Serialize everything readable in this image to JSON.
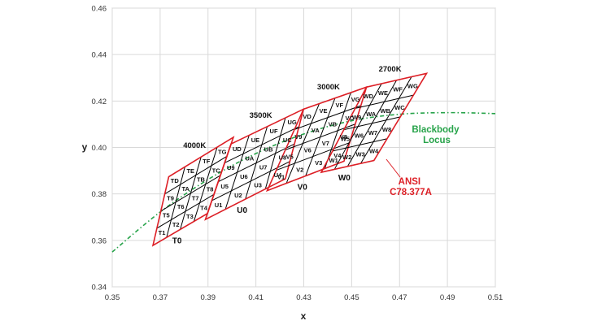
{
  "chart_data": {
    "type": "line",
    "xlabel": "x",
    "ylabel": "y",
    "xlim": [
      0.35,
      0.51
    ],
    "ylim": [
      0.34,
      0.46
    ],
    "x_ticks": [
      "0.35",
      "0.37",
      "0.39",
      "0.41",
      "0.43",
      "0.45",
      "0.47",
      "0.49",
      "0.51"
    ],
    "y_ticks": [
      "0.34",
      "0.36",
      "0.38",
      "0.40",
      "0.42",
      "0.44",
      "0.46"
    ],
    "grid": true,
    "colors": {
      "quadrangle": "#dd1f26",
      "grid_lines": "#000000",
      "locus": "#27a34a",
      "ansi": "#dd1f26"
    },
    "blackbody_locus": {
      "name": "Blackbody Locus",
      "x": [
        0.35,
        0.37,
        0.39,
        0.41,
        0.43,
        0.45,
        0.47,
        0.49,
        0.51
      ],
      "y": [
        0.355,
        0.3722,
        0.3862,
        0.3974,
        0.4058,
        0.4115,
        0.4143,
        0.415,
        0.4146
      ]
    },
    "regions": [
      {
        "group": "T",
        "cct": "4000K",
        "base": "T0",
        "outline": [
          [
            0.367,
            0.3578
          ],
          [
            0.3898,
            0.3716
          ],
          [
            0.4006,
            0.4044
          ],
          [
            0.3736,
            0.3874
          ]
        ],
        "cells": [
          [
            "T1",
            "T2",
            "T3",
            "T4"
          ],
          [
            "T5",
            "T6",
            "T7",
            "T8"
          ],
          [
            "T9",
            "TA",
            "TB",
            "TC"
          ],
          [
            "TD",
            "TE",
            "TF",
            "TG"
          ]
        ]
      },
      {
        "group": "U",
        "cct": "3500K",
        "base": "U0",
        "outline": [
          [
            0.3889,
            0.369
          ],
          [
            0.4223,
            0.3865
          ],
          [
            0.4299,
            0.4165
          ],
          [
            0.3996,
            0.4015
          ]
        ],
        "cells": [
          [
            "U1",
            "U2",
            "U3",
            "U4"
          ],
          [
            "U5",
            "U6",
            "U7",
            "U8"
          ],
          [
            "U9",
            "UA",
            "UB",
            "UC"
          ],
          [
            "UD",
            "UE",
            "UF",
            "UG"
          ]
        ]
      },
      {
        "group": "V",
        "cct": "3000K",
        "base": "V0",
        "outline": [
          [
            0.4147,
            0.3814
          ],
          [
            0.4468,
            0.3941
          ],
          [
            0.4562,
            0.426
          ],
          [
            0.4299,
            0.4165
          ]
        ],
        "cells": [
          [
            "V1",
            "V2",
            "V3",
            "V4"
          ],
          [
            "V5",
            "V6",
            "V7",
            "V8"
          ],
          [
            "V9",
            "VA",
            "VB",
            "VC"
          ],
          [
            "VD",
            "VE",
            "VF",
            "VG"
          ]
        ]
      },
      {
        "group": "W",
        "cct": "2700K",
        "base": "W0",
        "outline": [
          [
            0.4373,
            0.3893
          ],
          [
            0.4593,
            0.3944
          ],
          [
            0.4813,
            0.4319
          ],
          [
            0.4562,
            0.426
          ]
        ],
        "cells": [
          [
            "W1",
            "W2",
            "W3",
            "W4"
          ],
          [
            "W5",
            "W6",
            "W7",
            "W8"
          ],
          [
            "W9",
            "WA",
            "WB",
            "WC"
          ],
          [
            "WD",
            "WE",
            "WF",
            "WG"
          ]
        ]
      }
    ],
    "annotations": {
      "locus": "Blackbody\nLocus",
      "ansi": "ANSI\nC78.377A"
    }
  }
}
